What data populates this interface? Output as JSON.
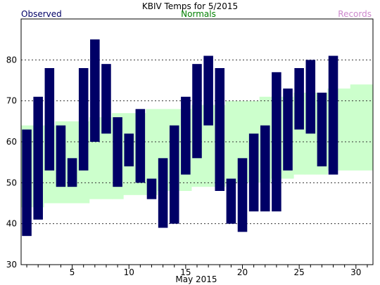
{
  "chart_data": {
    "type": "bar",
    "title": "KBIV Temps for 5/2015",
    "xlabel": "May 2015",
    "ylabel": "",
    "legend": {
      "observed": "Observed",
      "normals": "Normals",
      "records": "Records"
    },
    "colors": {
      "observed": "#000066",
      "normals": "#ccffcc",
      "normals_text": "#008000",
      "records_text": "#cc88cc",
      "observed_text": "#000066",
      "grid": "#333333"
    },
    "xlim": [
      0.5,
      31.5
    ],
    "ylim": [
      30,
      90
    ],
    "x_ticks": [
      5,
      10,
      15,
      20,
      25,
      30
    ],
    "y_ticks": [
      30,
      40,
      50,
      60,
      70,
      80
    ],
    "grid_lines": [
      40,
      50,
      60,
      70,
      80
    ],
    "normals": {
      "days": [
        1,
        2,
        3,
        4,
        5,
        6,
        7,
        8,
        9,
        10,
        11,
        12,
        13,
        14,
        15,
        16,
        17,
        18,
        19,
        20,
        21,
        22,
        23,
        24,
        25,
        26,
        27,
        28,
        29,
        30,
        31
      ],
      "high": [
        64,
        64,
        64,
        65,
        65,
        65,
        66,
        66,
        67,
        67,
        67,
        68,
        68,
        68,
        68,
        69,
        69,
        69,
        70,
        70,
        70,
        71,
        71,
        71,
        72,
        72,
        72,
        73,
        73,
        74,
        74
      ],
      "low": [
        44,
        44,
        45,
        45,
        45,
        45,
        46,
        46,
        46,
        47,
        47,
        47,
        48,
        48,
        48,
        49,
        49,
        49,
        50,
        50,
        50,
        50,
        51,
        51,
        52,
        52,
        52,
        53,
        53,
        53,
        53
      ]
    },
    "observed": {
      "days": [
        1,
        2,
        3,
        4,
        5,
        6,
        7,
        8,
        9,
        10,
        11,
        12,
        13,
        14,
        15,
        16,
        17,
        18,
        19,
        20,
        21,
        22,
        23,
        24,
        25,
        26,
        27,
        28
      ],
      "high": [
        63,
        71,
        78,
        64,
        56,
        78,
        85,
        79,
        66,
        62,
        68,
        51,
        56,
        64,
        71,
        79,
        81,
        78,
        51,
        56,
        62,
        64,
        77,
        73,
        78,
        80,
        72,
        81
      ],
      "low": [
        37,
        41,
        53,
        49,
        49,
        53,
        60,
        62,
        49,
        54,
        50,
        46,
        39,
        40,
        52,
        56,
        64,
        48,
        40,
        38,
        43,
        43,
        43,
        53,
        63,
        62,
        54,
        52
      ]
    }
  }
}
